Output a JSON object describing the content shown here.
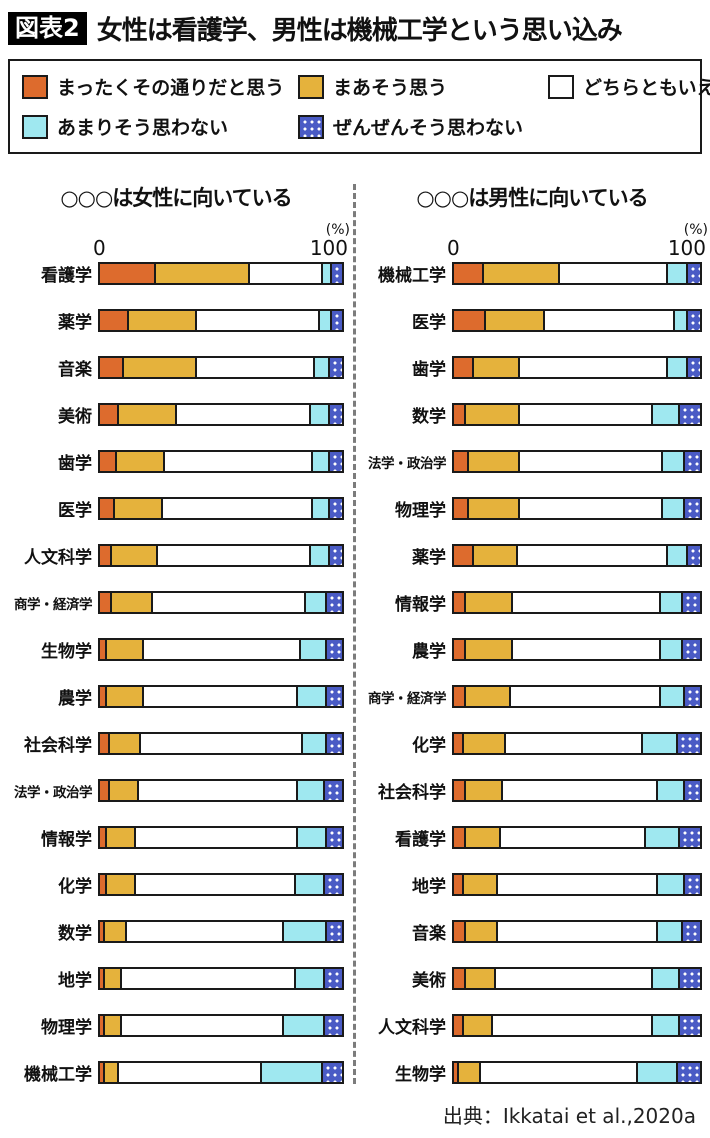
{
  "header": {
    "badge": "図表2",
    "title": "女性は看護学、男性は機械工学という思い込み"
  },
  "legend": {
    "items": [
      {
        "key": "strongly-agree",
        "label": "まったくその通りだと思う",
        "color": "#DD6B2D",
        "pattern": "solid"
      },
      {
        "key": "agree",
        "label": "まあそう思う",
        "color": "#E5B23C",
        "pattern": "solid"
      },
      {
        "key": "neutral",
        "label": "どちらともいえない",
        "color": "#FFFFFF",
        "pattern": "solid"
      },
      {
        "key": "disagree",
        "label": "あまりそう思わない",
        "color": "#9FE8F0",
        "pattern": "solid"
      },
      {
        "key": "strongly-disagree",
        "label": "ぜんぜんそう思わない",
        "color": "#4A5BC5",
        "pattern": "dots"
      }
    ]
  },
  "axis": {
    "zero": "0",
    "hundred": "100",
    "percent": "(%)"
  },
  "chart_data": [
    {
      "type": "bar",
      "stacked": true,
      "orientation": "horizontal",
      "unit": "%",
      "xlim": [
        0,
        100
      ],
      "title": "○○○は女性に向いている",
      "series_labels": [
        "まったくその通りだと思う",
        "まあそう思う",
        "どちらともいえない",
        "あまりそう思わない",
        "ぜんぜんそう思わない"
      ],
      "categories": [
        "看護学",
        "薬学",
        "音楽",
        "美術",
        "歯学",
        "医学",
        "人文科学",
        "商学・経済学",
        "生物学",
        "農学",
        "社会科学",
        "法学・政治学",
        "情報学",
        "化学",
        "数学",
        "地学",
        "物理学",
        "機械工学"
      ],
      "rows": [
        [
          23,
          39,
          30,
          4,
          4
        ],
        [
          12,
          28,
          51,
          5,
          4
        ],
        [
          10,
          30,
          49,
          6,
          5
        ],
        [
          8,
          24,
          55,
          8,
          5
        ],
        [
          7,
          20,
          61,
          7,
          5
        ],
        [
          6,
          20,
          62,
          7,
          5
        ],
        [
          5,
          19,
          63,
          8,
          5
        ],
        [
          5,
          17,
          63,
          9,
          6
        ],
        [
          3,
          15,
          65,
          11,
          6
        ],
        [
          3,
          15,
          64,
          12,
          6
        ],
        [
          4,
          13,
          67,
          10,
          6
        ],
        [
          4,
          12,
          66,
          11,
          7
        ],
        [
          3,
          12,
          67,
          12,
          6
        ],
        [
          3,
          12,
          66,
          12,
          7
        ],
        [
          2,
          9,
          65,
          18,
          6
        ],
        [
          2,
          7,
          72,
          12,
          7
        ],
        [
          2,
          7,
          67,
          17,
          7
        ],
        [
          2,
          6,
          59,
          25,
          8
        ]
      ]
    },
    {
      "type": "bar",
      "stacked": true,
      "orientation": "horizontal",
      "unit": "%",
      "xlim": [
        0,
        100
      ],
      "title": "○○○は男性に向いている",
      "series_labels": [
        "まったくその通りだと思う",
        "まあそう思う",
        "どちらともいえない",
        "あまりそう思わない",
        "ぜんぜんそう思わない"
      ],
      "categories": [
        "機械工学",
        "医学",
        "歯学",
        "数学",
        "法学・政治学",
        "物理学",
        "薬学",
        "情報学",
        "農学",
        "商学・経済学",
        "化学",
        "社会科学",
        "看護学",
        "地学",
        "音楽",
        "美術",
        "人文科学",
        "生物学"
      ],
      "rows": [
        [
          12,
          31,
          44,
          8,
          5
        ],
        [
          13,
          24,
          53,
          5,
          5
        ],
        [
          8,
          19,
          60,
          8,
          5
        ],
        [
          5,
          22,
          54,
          11,
          8
        ],
        [
          6,
          21,
          58,
          9,
          6
        ],
        [
          6,
          21,
          58,
          9,
          6
        ],
        [
          8,
          18,
          61,
          8,
          5
        ],
        [
          5,
          19,
          60,
          9,
          7
        ],
        [
          5,
          19,
          60,
          9,
          7
        ],
        [
          5,
          18,
          61,
          10,
          6
        ],
        [
          4,
          17,
          56,
          14,
          9
        ],
        [
          5,
          15,
          63,
          11,
          6
        ],
        [
          5,
          14,
          59,
          14,
          8
        ],
        [
          4,
          14,
          65,
          11,
          6
        ],
        [
          5,
          13,
          65,
          10,
          7
        ],
        [
          5,
          12,
          64,
          11,
          8
        ],
        [
          4,
          12,
          65,
          11,
          8
        ],
        [
          2,
          9,
          64,
          16,
          9
        ]
      ]
    }
  ],
  "source": "出典：Ikkatai et al.,2020a"
}
